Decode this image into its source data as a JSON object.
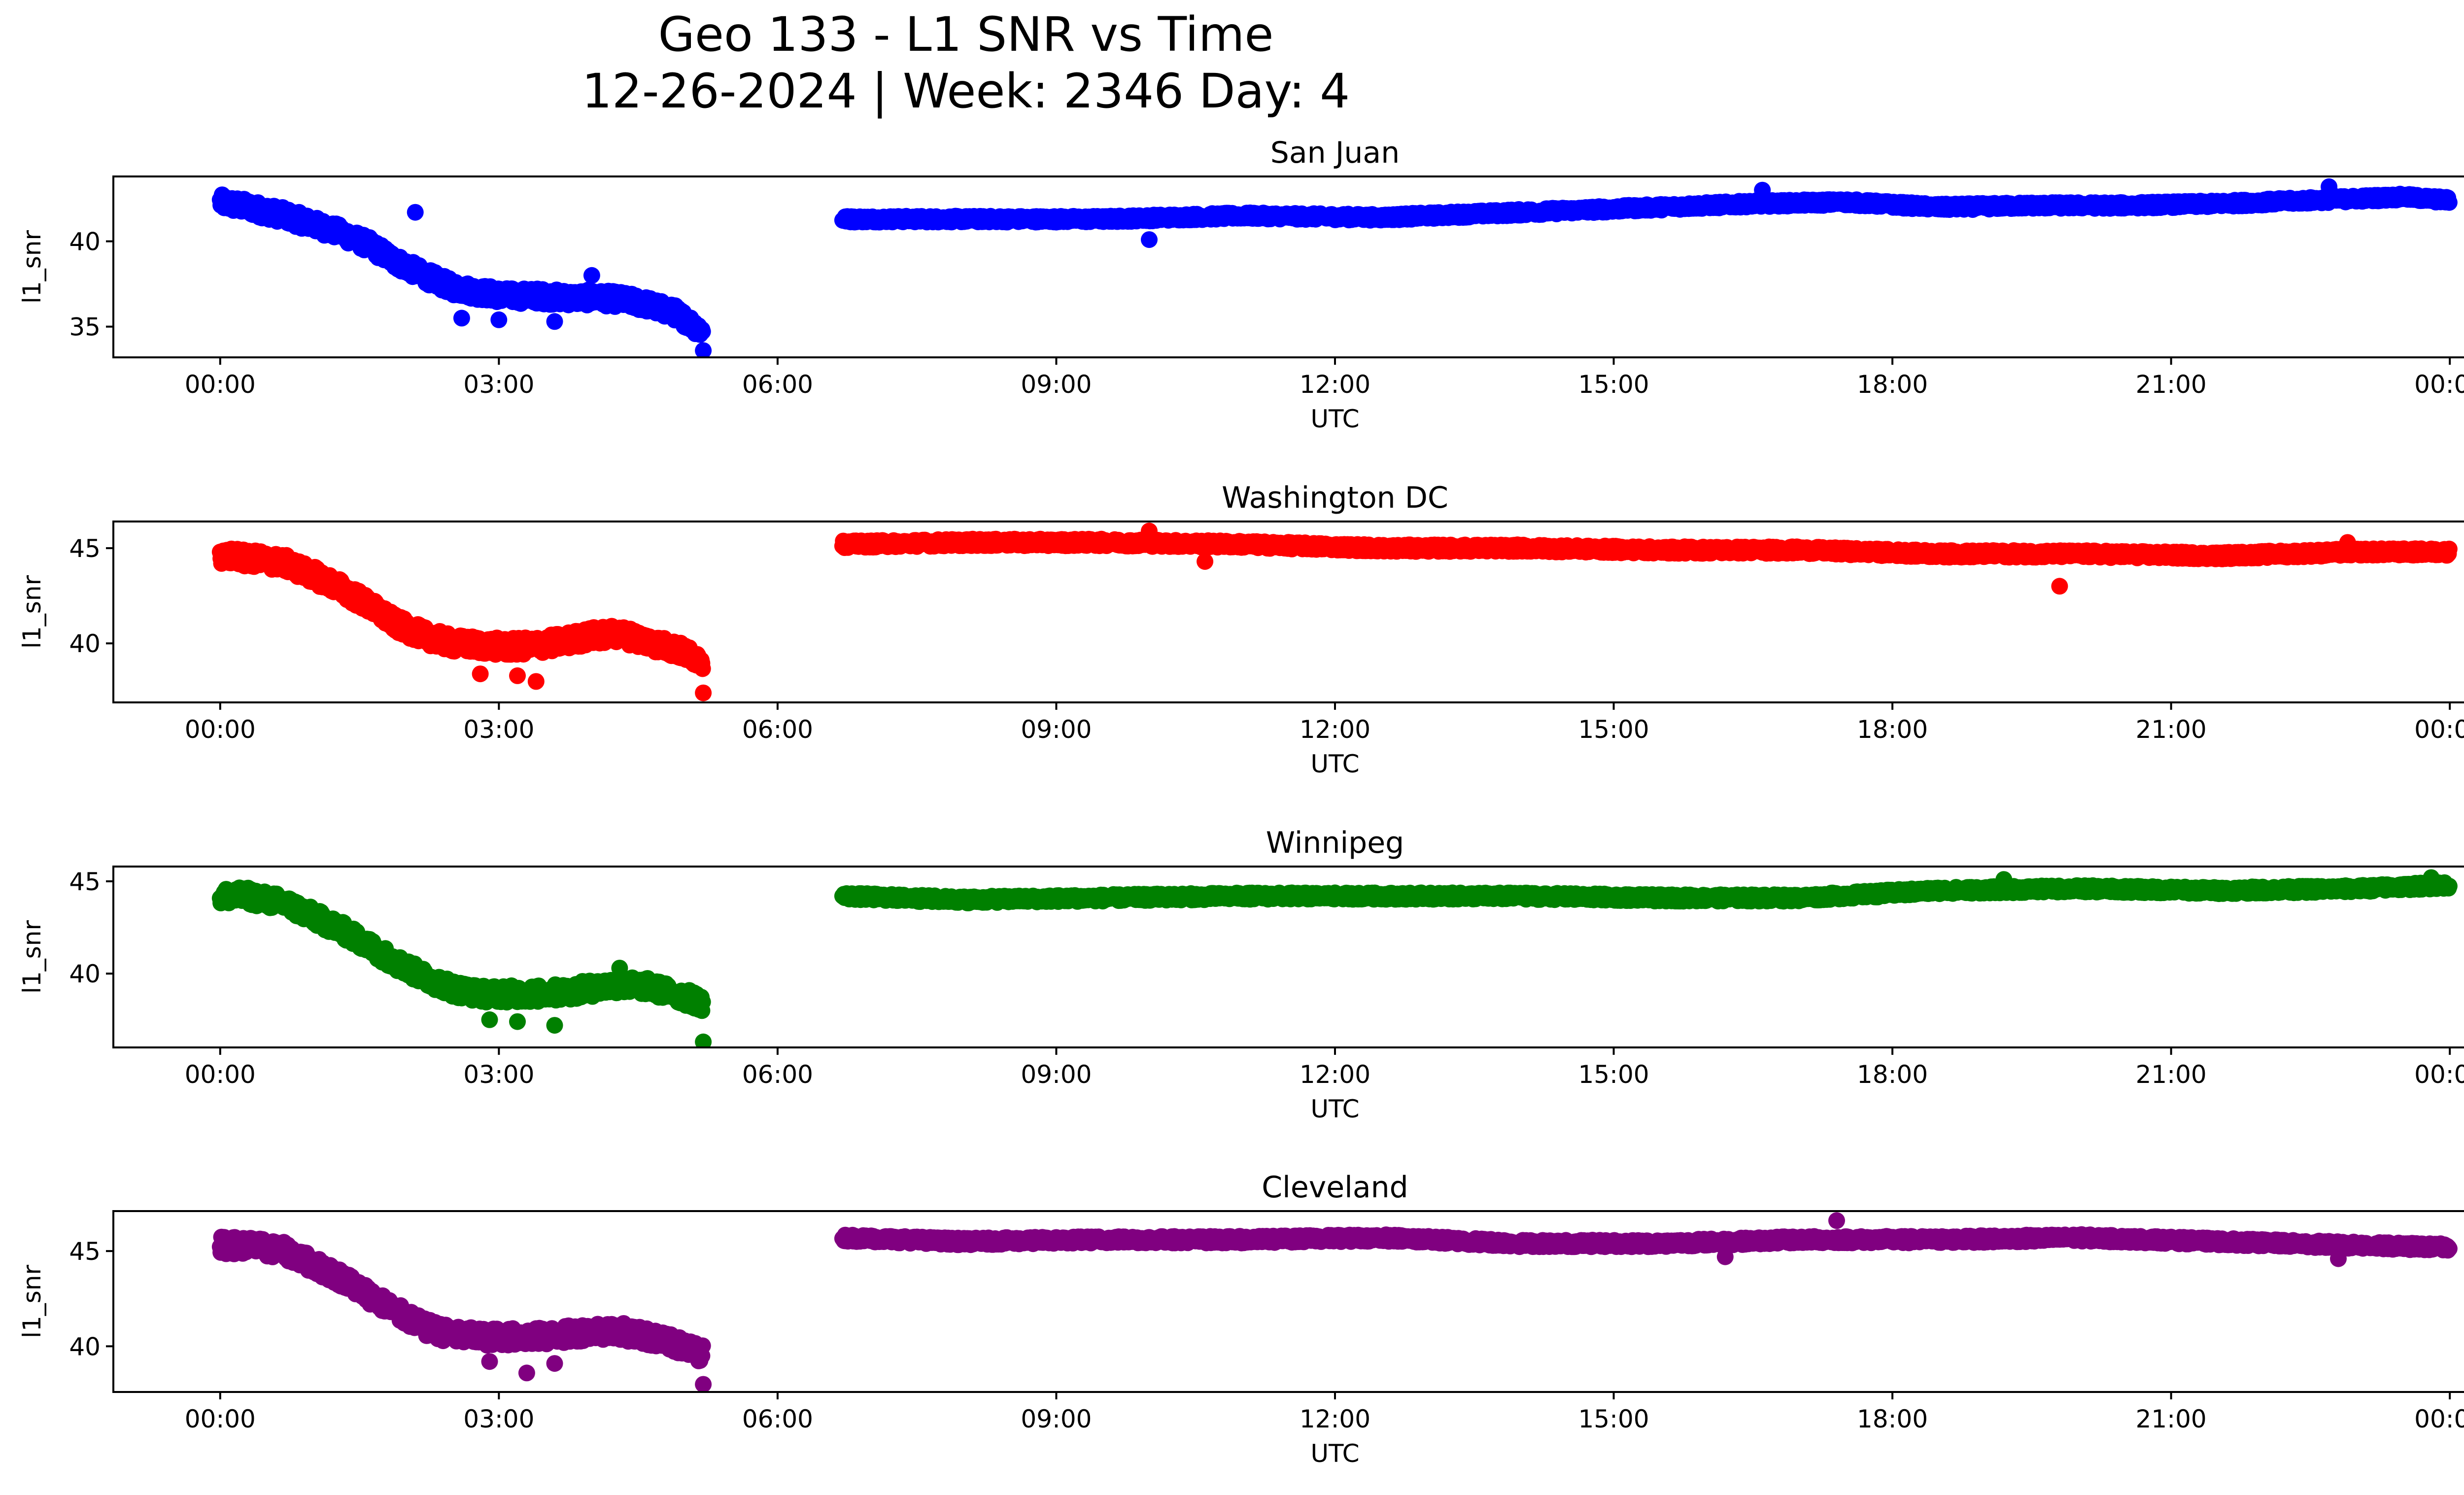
{
  "figure": {
    "title_line1": "Geo 133 - L1 SNR vs Time",
    "title_line2": "12-26-2024 | Week: 2346 Day: 4"
  },
  "chart_data": [
    {
      "type": "scatter",
      "title": "San Juan",
      "xlabel": "UTC",
      "ylabel": "l1_snr",
      "color": "#0000ff",
      "xlim_hours": [
        -1.15,
        25.15
      ],
      "ylim": [
        33.2,
        43.8
      ],
      "yticks": [
        35,
        40
      ],
      "xticks": [
        "00:00",
        "03:00",
        "06:00",
        "09:00",
        "12:00",
        "15:00",
        "18:00",
        "21:00",
        "00:00"
      ],
      "segments": [
        {
          "hours": [
            0.0,
            0.3,
            0.7,
            1.0,
            1.3,
            1.6,
            1.9,
            2.2,
            2.5,
            2.8,
            3.1,
            3.4,
            3.7,
            4.0,
            4.3,
            4.6,
            4.9,
            5.2
          ],
          "values": [
            42.3,
            42.0,
            41.5,
            41.0,
            40.5,
            39.8,
            38.8,
            38.0,
            37.3,
            37.0,
            36.8,
            36.8,
            36.7,
            36.7,
            36.6,
            36.3,
            35.8,
            34.7
          ]
        },
        {
          "hours": [
            6.7,
            8.0,
            9.5,
            11.0,
            12.5,
            13.5,
            14.5,
            15.5,
            16.5,
            17.5,
            18.5,
            19.5,
            20.5,
            21.5,
            22.5,
            23.5,
            24.0
          ],
          "values": [
            41.3,
            41.3,
            41.3,
            41.5,
            41.4,
            41.6,
            41.8,
            42.0,
            42.2,
            42.3,
            42.0,
            42.1,
            42.1,
            42.2,
            42.4,
            42.6,
            42.4
          ]
        }
      ],
      "outliers": [
        {
          "hour": 2.1,
          "value": 41.7
        },
        {
          "hour": 2.6,
          "value": 35.5
        },
        {
          "hour": 3.0,
          "value": 35.4
        },
        {
          "hour": 3.6,
          "value": 35.3
        },
        {
          "hour": 5.2,
          "value": 33.6
        },
        {
          "hour": 4.0,
          "value": 38.0
        },
        {
          "hour": 10.0,
          "value": 40.1
        },
        {
          "hour": 16.6,
          "value": 43.0
        },
        {
          "hour": 22.7,
          "value": 43.2
        }
      ]
    },
    {
      "type": "scatter",
      "title": "Washington DC",
      "xlabel": "UTC",
      "ylabel": "l1_snr",
      "color": "#ff0000",
      "xlim_hours": [
        -1.15,
        25.15
      ],
      "ylim": [
        36.9,
        46.4
      ],
      "yticks": [
        40,
        45
      ],
      "xticks": [
        "00:00",
        "03:00",
        "06:00",
        "09:00",
        "12:00",
        "15:00",
        "18:00",
        "21:00",
        "00:00"
      ],
      "segments": [
        {
          "hours": [
            0.0,
            0.3,
            0.7,
            1.0,
            1.3,
            1.6,
            1.9,
            2.2,
            2.5,
            2.8,
            3.1,
            3.4,
            3.7,
            4.0,
            4.3,
            4.6,
            4.9,
            5.2
          ],
          "values": [
            44.6,
            44.5,
            44.2,
            43.6,
            42.9,
            42.0,
            41.0,
            40.4,
            40.0,
            39.9,
            39.8,
            39.9,
            40.1,
            40.4,
            40.5,
            40.1,
            39.7,
            39.1
          ]
        },
        {
          "hours": [
            6.7,
            8.0,
            9.5,
            11.0,
            12.5,
            14.0,
            15.5,
            17.0,
            18.5,
            20.0,
            21.5,
            23.0,
            24.0
          ],
          "values": [
            45.2,
            45.3,
            45.3,
            45.2,
            45.0,
            45.0,
            44.9,
            44.9,
            44.7,
            44.7,
            44.6,
            44.8,
            44.8
          ]
        }
      ],
      "outliers": [
        {
          "hour": 2.8,
          "value": 38.4
        },
        {
          "hour": 3.2,
          "value": 38.3
        },
        {
          "hour": 3.4,
          "value": 38.0
        },
        {
          "hour": 5.2,
          "value": 37.4
        },
        {
          "hour": 10.0,
          "value": 45.9
        },
        {
          "hour": 10.6,
          "value": 44.3
        },
        {
          "hour": 19.8,
          "value": 43.0
        },
        {
          "hour": 22.9,
          "value": 45.3
        }
      ]
    },
    {
      "type": "scatter",
      "title": "Winnipeg",
      "xlabel": "UTC",
      "ylabel": "l1_snr",
      "color": "#008000",
      "xlim_hours": [
        -1.15,
        25.15
      ],
      "ylim": [
        36.0,
        45.8
      ],
      "yticks": [
        40,
        45
      ],
      "xticks": [
        "00:00",
        "03:00",
        "06:00",
        "09:00",
        "12:00",
        "15:00",
        "18:00",
        "21:00",
        "00:00"
      ],
      "segments": [
        {
          "hours": [
            0.0,
            0.3,
            0.7,
            1.0,
            1.3,
            1.6,
            1.9,
            2.2,
            2.5,
            2.8,
            3.1,
            3.4,
            3.7,
            4.0,
            4.3,
            4.6,
            4.9,
            5.2
          ],
          "values": [
            44.2,
            44.2,
            43.8,
            43.1,
            42.4,
            41.5,
            40.6,
            39.8,
            39.2,
            38.9,
            38.9,
            38.9,
            39.0,
            39.2,
            39.4,
            39.3,
            38.9,
            38.4
          ]
        },
        {
          "hours": [
            6.7,
            8.0,
            9.5,
            11.0,
            12.5,
            14.0,
            15.5,
            17.0,
            18.5,
            20.0,
            21.5,
            23.0,
            24.0
          ],
          "values": [
            44.2,
            44.0,
            44.1,
            44.2,
            44.2,
            44.2,
            44.1,
            44.1,
            44.5,
            44.6,
            44.5,
            44.6,
            44.8
          ]
        }
      ],
      "outliers": [
        {
          "hour": 2.9,
          "value": 37.5
        },
        {
          "hour": 3.2,
          "value": 37.4
        },
        {
          "hour": 3.6,
          "value": 37.2
        },
        {
          "hour": 5.2,
          "value": 36.3
        },
        {
          "hour": 4.3,
          "value": 40.3
        },
        {
          "hour": 19.2,
          "value": 45.1
        },
        {
          "hour": 23.8,
          "value": 45.2
        }
      ]
    },
    {
      "type": "scatter",
      "title": "Cleveland",
      "xlabel": "UTC",
      "ylabel": "l1_snr",
      "color": "#800080",
      "xlim_hours": [
        -1.15,
        25.15
      ],
      "ylim": [
        37.6,
        47.1
      ],
      "yticks": [
        40,
        45
      ],
      "xticks": [
        "00:00",
        "03:00",
        "06:00",
        "09:00",
        "12:00",
        "15:00",
        "18:00",
        "21:00",
        "00:00"
      ],
      "segments": [
        {
          "hours": [
            0.0,
            0.3,
            0.7,
            1.0,
            1.3,
            1.6,
            1.9,
            2.2,
            2.5,
            2.8,
            3.1,
            3.4,
            3.7,
            4.0,
            4.3,
            4.6,
            4.9,
            5.2
          ],
          "values": [
            45.3,
            45.3,
            45.0,
            44.3,
            43.6,
            42.7,
            41.8,
            41.0,
            40.6,
            40.5,
            40.5,
            40.5,
            40.6,
            40.8,
            40.8,
            40.5,
            40.1,
            39.6
          ]
        },
        {
          "hours": [
            6.7,
            8.0,
            9.5,
            11.0,
            12.5,
            14.0,
            15.5,
            17.0,
            18.5,
            20.0,
            21.5,
            23.0,
            24.0
          ],
          "values": [
            45.7,
            45.5,
            45.6,
            45.6,
            45.7,
            45.4,
            45.4,
            45.6,
            45.6,
            45.7,
            45.5,
            45.3,
            45.2
          ]
        }
      ],
      "outliers": [
        {
          "hour": 2.9,
          "value": 39.2
        },
        {
          "hour": 3.3,
          "value": 38.6
        },
        {
          "hour": 3.6,
          "value": 39.1
        },
        {
          "hour": 5.2,
          "value": 38.0
        },
        {
          "hour": 17.4,
          "value": 46.6
        },
        {
          "hour": 16.2,
          "value": 44.7
        },
        {
          "hour": 22.8,
          "value": 44.6
        }
      ]
    }
  ]
}
